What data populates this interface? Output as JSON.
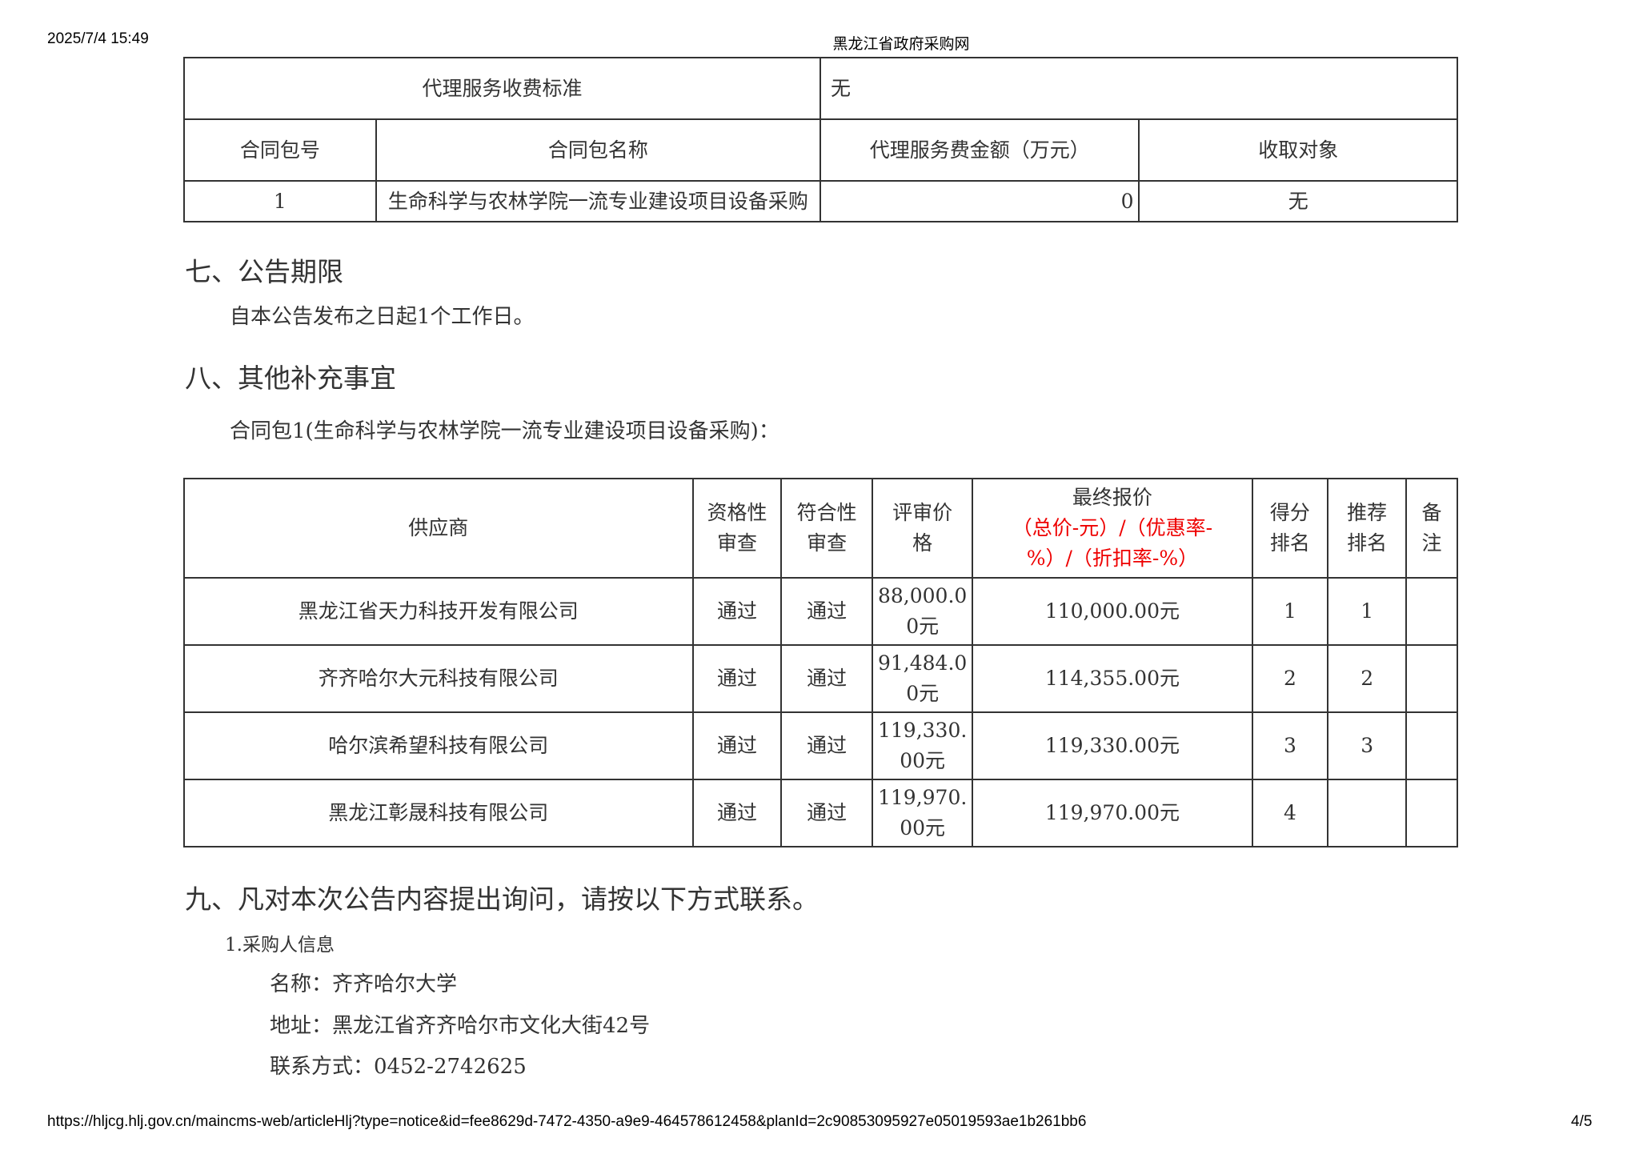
{
  "header": {
    "datetime": "2025/7/4 15:49",
    "site_title": "黑龙江省政府采购网"
  },
  "fee_table": {
    "standard_label": "代理服务收费标准",
    "standard_value": "无",
    "columns": [
      "合同包号",
      "合同包名称",
      "代理服务费金额（万元）",
      "收取对象"
    ],
    "rows": [
      [
        "1",
        "生命科学与农林学院一流专业建设项目设备采购",
        "0",
        "无"
      ]
    ]
  },
  "section7": {
    "heading": "七、公告期限",
    "text": "自本公告发布之日起1个工作日。"
  },
  "section8": {
    "heading": "八、其他补充事宜",
    "text": "合同包1(生命科学与农林学院一流专业建设项目设备采购)："
  },
  "supplier_table": {
    "columns": {
      "supplier": "供应商",
      "qualification": [
        "资格性",
        "审查"
      ],
      "compliance": [
        "符合性",
        "审查"
      ],
      "review_price": [
        "评审价",
        "格"
      ],
      "final_price": "最终报价",
      "final_price_note": [
        "（总价-元）/（优惠率-",
        "%）/（折扣率-%）"
      ],
      "score_rank": [
        "得分",
        "排名"
      ],
      "recommend_rank": [
        "推荐",
        "排名"
      ],
      "remark": [
        "备",
        "注"
      ]
    },
    "rows": [
      {
        "supplier": "黑龙江省天力科技开发有限公司",
        "qualification": "通过",
        "compliance": "通过",
        "review_price": [
          "88,000.0",
          "0元"
        ],
        "final_price": "110,000.00元",
        "score_rank": "1",
        "recommend_rank": "1",
        "remark": ""
      },
      {
        "supplier": "齐齐哈尔大元科技有限公司",
        "qualification": "通过",
        "compliance": "通过",
        "review_price": [
          "91,484.0",
          "0元"
        ],
        "final_price": "114,355.00元",
        "score_rank": "2",
        "recommend_rank": "2",
        "remark": ""
      },
      {
        "supplier": "哈尔滨希望科技有限公司",
        "qualification": "通过",
        "compliance": "通过",
        "review_price": [
          "119,330.",
          "00元"
        ],
        "final_price": "119,330.00元",
        "score_rank": "3",
        "recommend_rank": "3",
        "remark": ""
      },
      {
        "supplier": "黑龙江彰晟科技有限公司",
        "qualification": "通过",
        "compliance": "通过",
        "review_price": [
          "119,970.",
          "00元"
        ],
        "final_price": "119,970.00元",
        "score_rank": "4",
        "recommend_rank": "",
        "remark": ""
      }
    ]
  },
  "section9": {
    "heading": "九、凡对本次公告内容提出询问，请按以下方式联系。",
    "sub": "1.采购人信息",
    "name": "名称：齐齐哈尔大学",
    "address": "地址：黑龙江省齐齐哈尔市文化大街42号",
    "contact": "联系方式：0452-2742625"
  },
  "footer": {
    "url": "https://hljcg.hlj.gov.cn/maincms-web/articleHlj?type=notice&id=fee8629d-7472-4350-a9e9-464578612458&planId=2c90853095927e05019593ae1b261bb6",
    "page": "4/5"
  },
  "colors": {
    "text": "#333333",
    "note_red": "#ee0000"
  }
}
